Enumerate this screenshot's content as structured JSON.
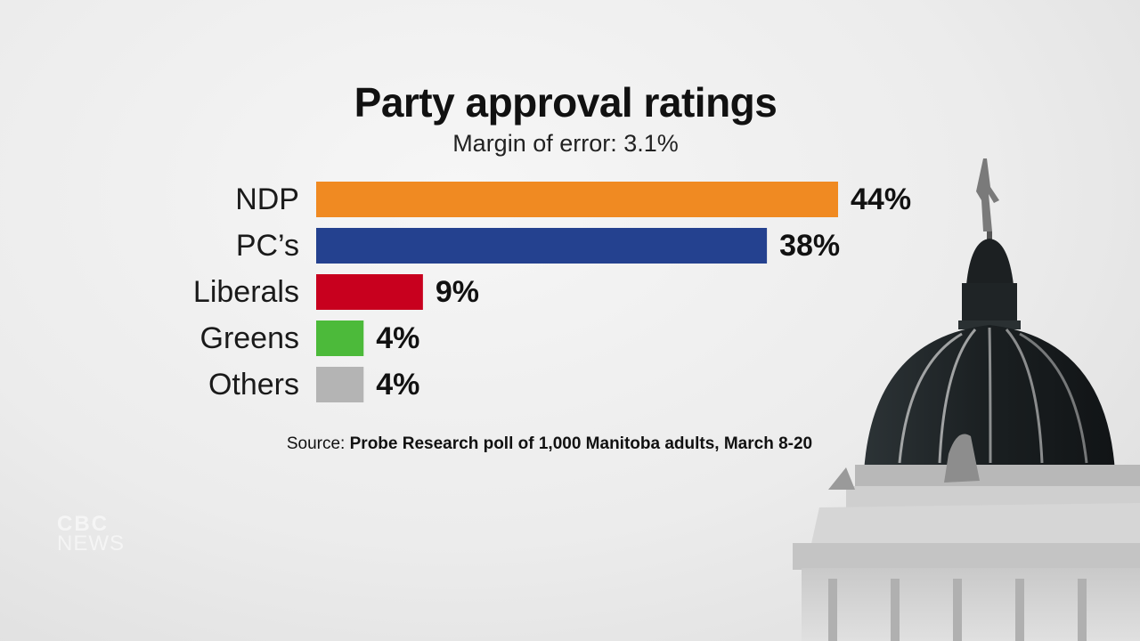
{
  "title": "Party approval ratings",
  "subtitle": "Margin of error: 3.1%",
  "source": {
    "prefix": "Source:",
    "text": "Probe Research poll of 1,000 Manitoba adults, March 8-20"
  },
  "logo": {
    "line1": "CBC",
    "line2": "NEWS"
  },
  "chart_data": {
    "type": "bar",
    "orientation": "horizontal",
    "title": "Party approval ratings",
    "subtitle": "Margin of error: 3.1%",
    "categories": [
      "NDP",
      "PC’s",
      "Liberals",
      "Greens",
      "Others"
    ],
    "values": [
      44,
      38,
      9,
      4,
      4
    ],
    "value_labels": [
      "44%",
      "38%",
      "9%",
      "4%",
      "4%"
    ],
    "colors": [
      "#f08a22",
      "#24418f",
      "#c8001e",
      "#4cba3a",
      "#b4b4b4"
    ],
    "xlim": [
      0,
      44
    ],
    "grid": false,
    "legend": "none"
  }
}
